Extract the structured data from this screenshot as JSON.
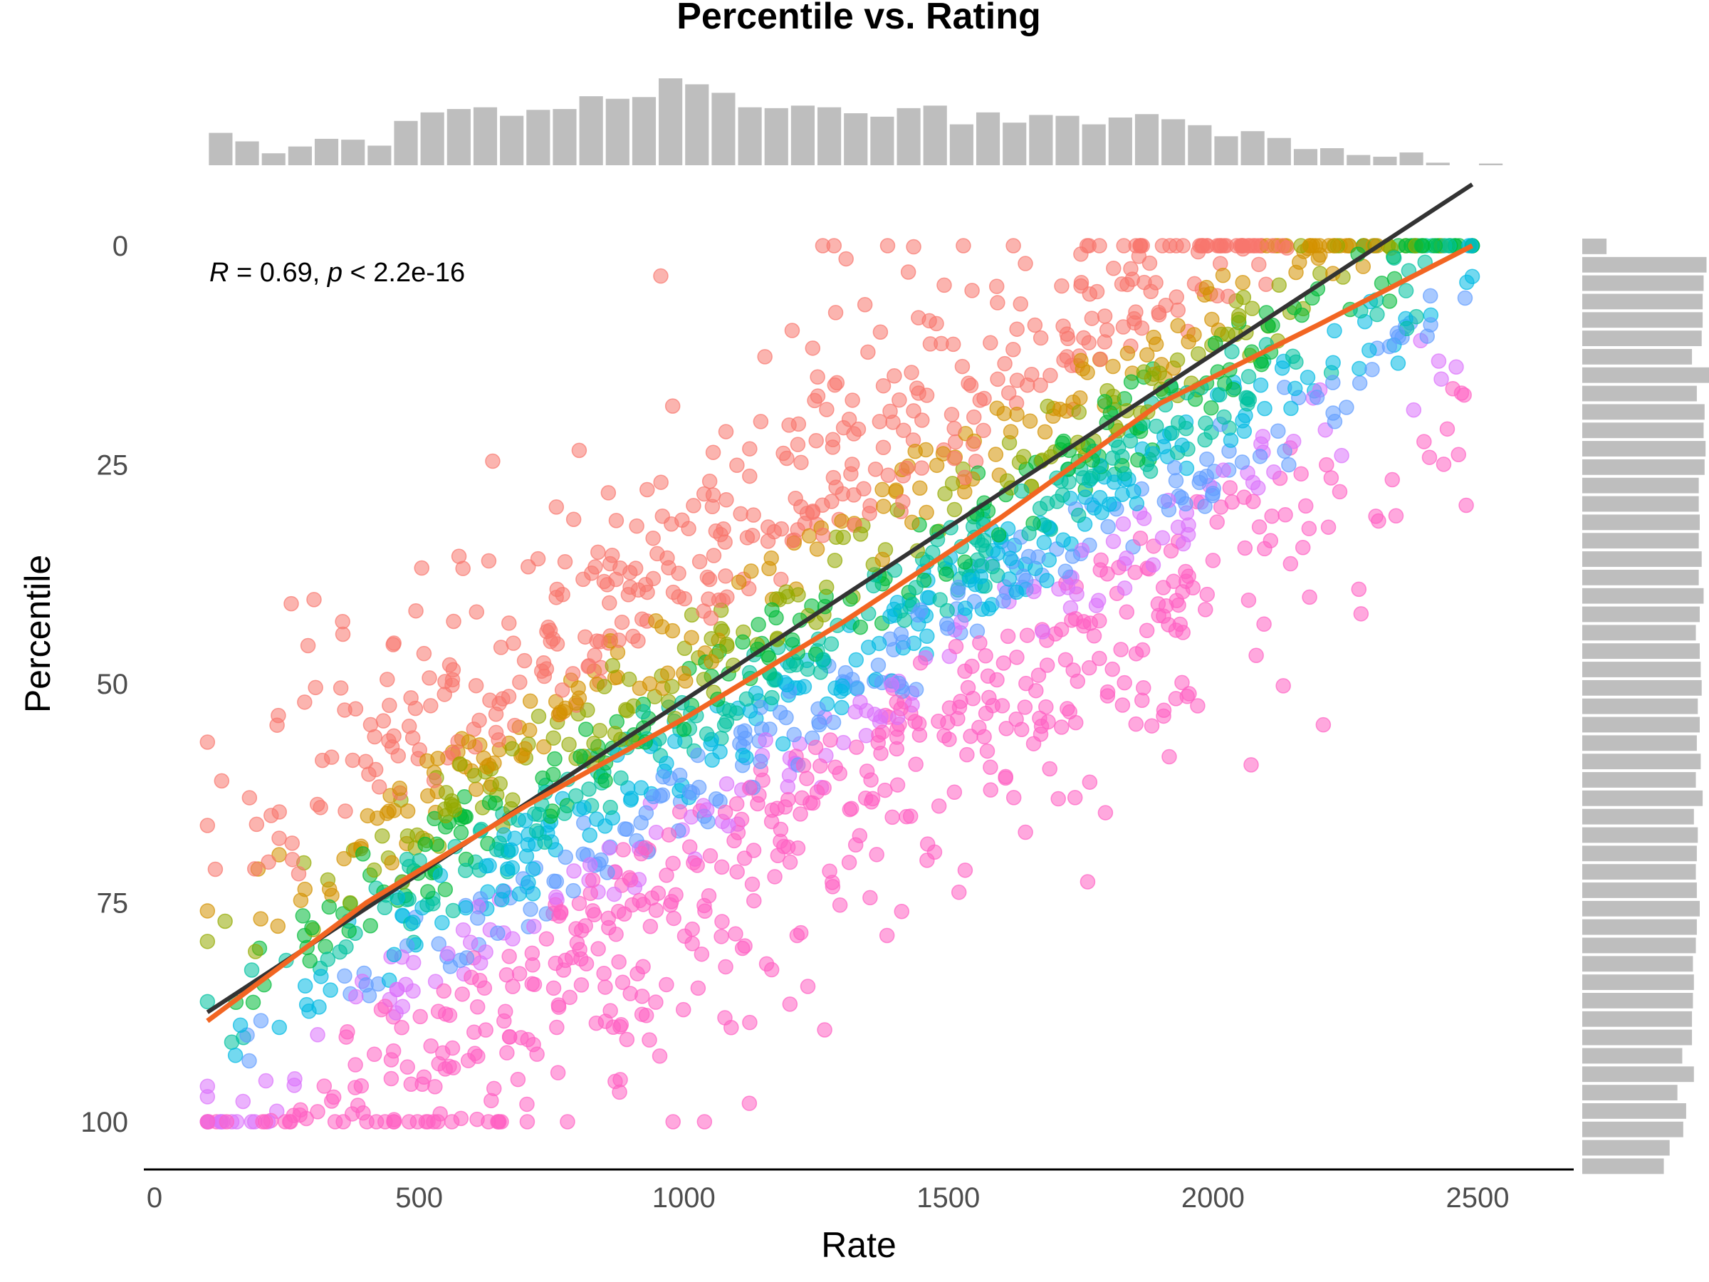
{
  "chart_data": {
    "type": "scatter",
    "title": "Percentile vs. Rating",
    "xlabel": "Rate",
    "ylabel": "Percentile",
    "xlim": [
      0,
      2650
    ],
    "ylim": [
      0,
      103
    ],
    "y_reversed": true,
    "x_ticks": [
      "0",
      "500",
      "1000",
      "1500",
      "2000",
      "2500"
    ],
    "y_ticks": [
      "0",
      "25",
      "50",
      "75",
      "100"
    ],
    "annotation": {
      "r_symbol": "R",
      "r_value": " = 0.69, ",
      "p_symbol": "p",
      "p_value": " < 2.2e-16"
    },
    "point_opacity": 0.55,
    "palette": [
      "#F8766D",
      "#D39200",
      "#93AA00",
      "#00BA38",
      "#00C19F",
      "#00B9E3",
      "#619CFF",
      "#DB72FB",
      "#FF61C3"
    ],
    "regression_line": {
      "color": "#333333",
      "x": [
        100,
        2490
      ],
      "y": [
        87.5,
        -7
      ]
    },
    "smooth_line": {
      "color": "#F26522",
      "x": [
        100,
        400,
        700,
        1000,
        1300,
        1600,
        1900,
        2200,
        2490
      ],
      "y": [
        88.5,
        75,
        64,
        54,
        43,
        31,
        18,
        9,
        0
      ]
    },
    "marginal_x": {
      "color": "#BEBEBE",
      "bin_start": 100,
      "bin_width": 50,
      "counts": [
        38,
        28,
        14,
        22,
        31,
        30,
        23,
        52,
        62,
        66,
        68,
        58,
        65,
        66,
        81,
        78,
        80,
        102,
        95,
        85,
        68,
        67,
        70,
        68,
        61,
        57,
        67,
        70,
        48,
        62,
        50,
        59,
        58,
        48,
        56,
        60,
        54,
        47,
        34,
        40,
        32,
        19,
        20,
        12,
        10,
        15,
        3,
        0,
        2
      ]
    },
    "marginal_y": {
      "color": "#BEBEBE",
      "bin_start": 0,
      "bin_width": 2.1,
      "counts": [
        25,
        128,
        125,
        124,
        124,
        123,
        113,
        132,
        118,
        126,
        125,
        127,
        126,
        120,
        120,
        121,
        120,
        123,
        120,
        125,
        121,
        117,
        121,
        122,
        123,
        119,
        121,
        118,
        122,
        117,
        124,
        115,
        119,
        118,
        117,
        118,
        121,
        118,
        117,
        114,
        115,
        114,
        113,
        113,
        103,
        115,
        98,
        107,
        104,
        90,
        84
      ]
    }
  }
}
